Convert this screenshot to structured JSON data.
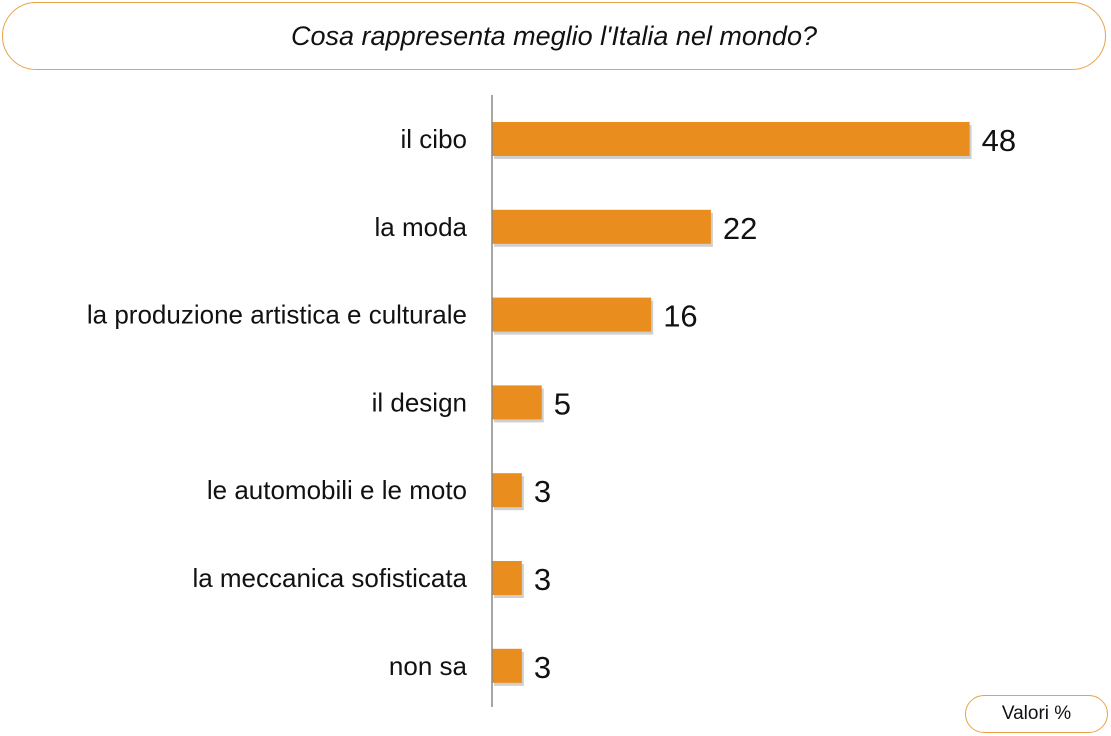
{
  "title": "Cosa rappresenta meglio l'Italia nel mondo?",
  "units_label": "Valori %",
  "colors": {
    "bar": "#e98d1f",
    "border": "#e8a34a",
    "axis": "#888888",
    "text": "#111111"
  },
  "chart_data": {
    "type": "bar",
    "orientation": "horizontal",
    "categories": [
      "il cibo",
      "la moda",
      "la produzione artistica e culturale",
      "il design",
      "le automobili e le moto",
      "la meccanica sofisticata",
      "non sa"
    ],
    "values": [
      48,
      22,
      16,
      5,
      3,
      3,
      3
    ],
    "data_labels": [
      "48",
      "22",
      "16",
      "5",
      "3",
      "3",
      "3"
    ],
    "title": "Cosa rappresenta meglio l'Italia nel mondo?",
    "xlim": [
      0,
      60
    ],
    "grid": false
  }
}
